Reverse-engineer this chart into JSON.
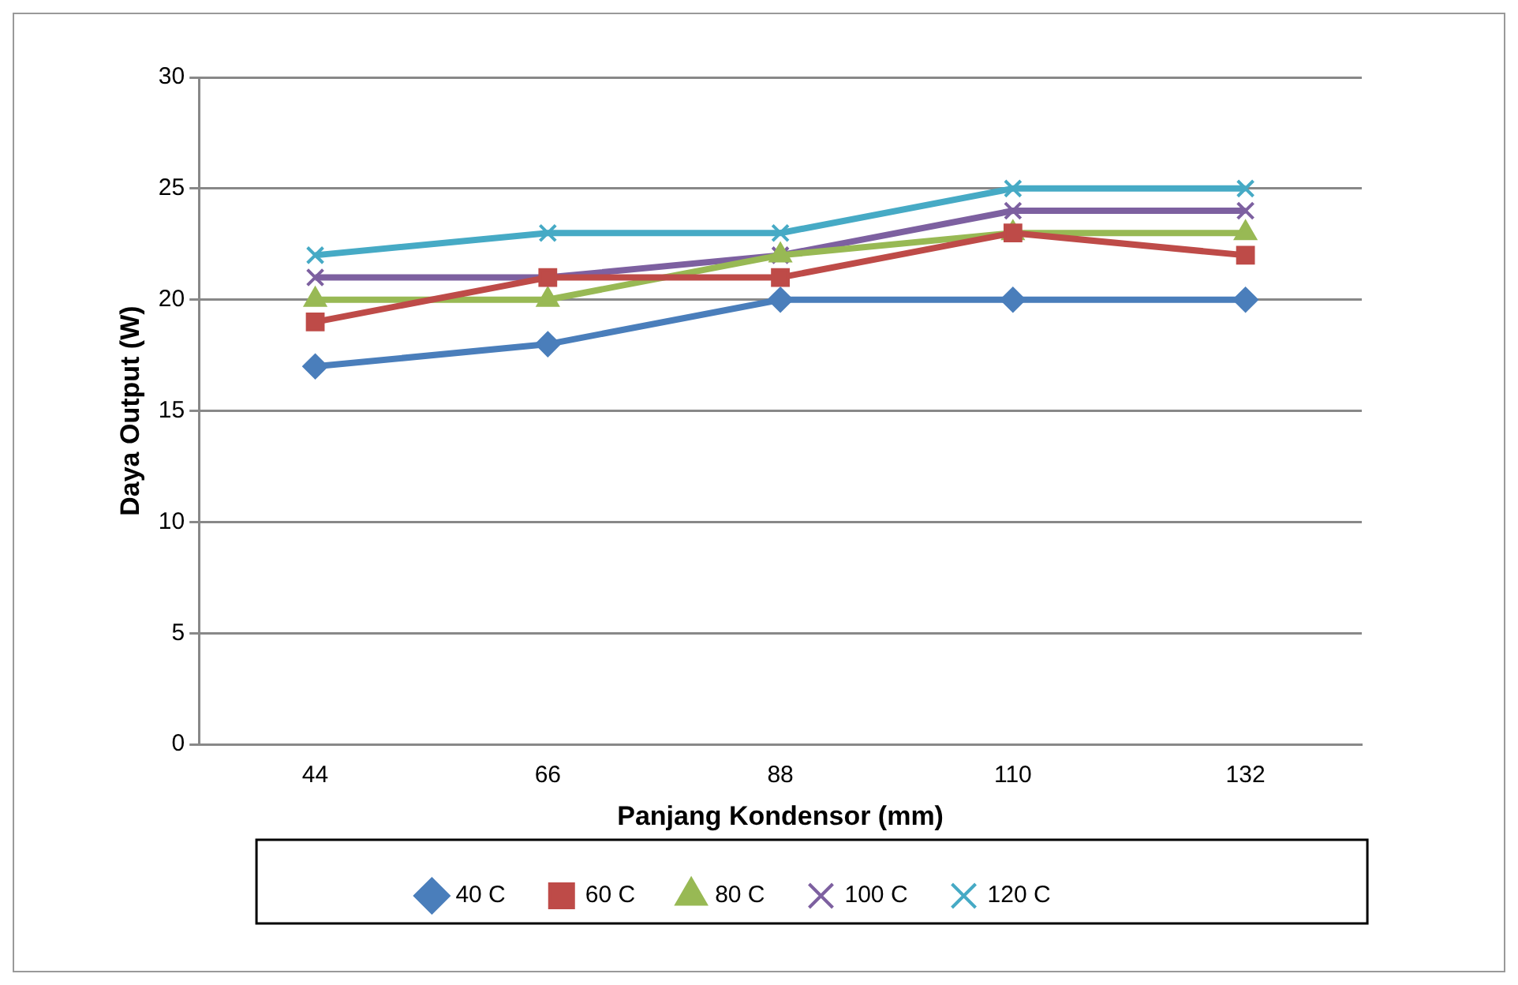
{
  "chart_data": {
    "type": "line",
    "xlabel": "Panjang Kondensor (mm)",
    "ylabel": "Daya Output (W)",
    "categories": [
      "44",
      "66",
      "88",
      "110",
      "132"
    ],
    "ylim": [
      0,
      30
    ],
    "yticks": [
      0,
      5,
      10,
      15,
      20,
      25,
      30
    ],
    "grid": "y",
    "legend": "bottom",
    "line_style": "solid",
    "series": [
      {
        "name": "40 C",
        "color": "#4a7ebb",
        "marker": "diamond",
        "values": [
          17,
          18,
          20,
          20,
          20
        ]
      },
      {
        "name": "60 C",
        "color": "#be4b48",
        "marker": "square",
        "values": [
          19,
          21,
          21,
          23,
          22
        ]
      },
      {
        "name": "80 C",
        "color": "#98b954",
        "marker": "triangle",
        "values": [
          20,
          20,
          22,
          23,
          23
        ]
      },
      {
        "name": "100 C",
        "color": "#7d60a0",
        "marker": "cross",
        "values": [
          21,
          21,
          22,
          24,
          24
        ]
      },
      {
        "name": "120 C",
        "color": "#46aac5",
        "marker": "cross",
        "values": [
          22,
          23,
          23,
          25,
          25
        ]
      }
    ]
  }
}
